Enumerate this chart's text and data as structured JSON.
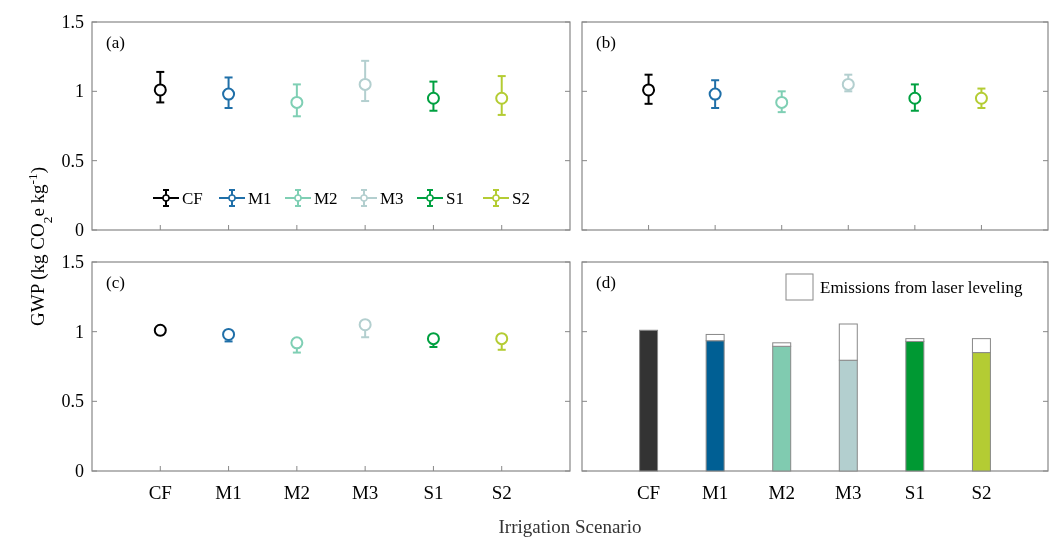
{
  "chart_data": [
    {
      "type": "scatter",
      "title": "(a)",
      "ylabel": "GWP (kg CO$_{2}$e kg$^{-1}$)",
      "categories": [
        "CF",
        "M1",
        "M2",
        "M3",
        "S1",
        "S2"
      ],
      "ylim": [
        0,
        1.5
      ],
      "yticks": [
        0,
        0.5,
        1,
        1.5
      ],
      "tick_labels": "y",
      "marker": "circle",
      "legend": "bottom",
      "grid": false,
      "series": [
        {
          "name": "CF",
          "color": "#000000",
          "x": [
            "CF"
          ],
          "values": [
            1.01
          ],
          "errors": [
            [
              0.92,
              1.14
            ]
          ]
        },
        {
          "name": "M1",
          "color": "#1f6fa8",
          "x": [
            "M1"
          ],
          "values": [
            0.98
          ],
          "errors": [
            [
              0.88,
              1.1
            ]
          ]
        },
        {
          "name": "M2",
          "color": "#7fcfb4",
          "x": [
            "M2"
          ],
          "values": [
            0.92
          ],
          "errors": [
            [
              0.82,
              1.05
            ]
          ]
        },
        {
          "name": "M3",
          "color": "#b3cfcf",
          "x": [
            "M3"
          ],
          "values": [
            1.05
          ],
          "errors": [
            [
              0.93,
              1.22
            ]
          ]
        },
        {
          "name": "S1",
          "color": "#00a040",
          "x": [
            "S1"
          ],
          "values": [
            0.95
          ],
          "errors": [
            [
              0.86,
              1.07
            ]
          ]
        },
        {
          "name": "S2",
          "color": "#b4cc33",
          "x": [
            "S2"
          ],
          "values": [
            0.95
          ],
          "errors": [
            [
              0.83,
              1.11
            ]
          ]
        }
      ]
    },
    {
      "type": "scatter",
      "title": "(b)",
      "categories": [
        "CF",
        "M1",
        "M2",
        "M3",
        "S1",
        "S2"
      ],
      "ylim": [
        0,
        1.5
      ],
      "yticks": [
        0,
        0.5,
        1,
        1.5
      ],
      "tick_labels": false,
      "marker": "circle",
      "grid": false,
      "series": [
        {
          "color": "#000000",
          "x": [
            "CF"
          ],
          "values": [
            1.01
          ],
          "errors": [
            [
              0.91,
              1.12
            ]
          ]
        },
        {
          "color": "#1f6fa8",
          "x": [
            "M1"
          ],
          "values": [
            0.98
          ],
          "errors": [
            [
              0.88,
              1.08
            ]
          ]
        },
        {
          "color": "#7fcfb4",
          "x": [
            "M2"
          ],
          "values": [
            0.92
          ],
          "errors": [
            [
              0.85,
              1.0
            ]
          ]
        },
        {
          "color": "#b3cfcf",
          "x": [
            "M3"
          ],
          "values": [
            1.05
          ],
          "errors": [
            [
              1.0,
              1.12
            ]
          ]
        },
        {
          "color": "#00a040",
          "x": [
            "S1"
          ],
          "values": [
            0.95
          ],
          "errors": [
            [
              0.86,
              1.05
            ]
          ]
        },
        {
          "color": "#b4cc33",
          "x": [
            "S2"
          ],
          "values": [
            0.95
          ],
          "errors": [
            [
              0.88,
              1.02
            ]
          ]
        }
      ]
    },
    {
      "type": "scatter",
      "title": "(c)",
      "xlabel": "Irrigation Scenario",
      "categories": [
        "CF",
        "M1",
        "M2",
        "M3",
        "S1",
        "S2"
      ],
      "ylim": [
        0,
        1.5
      ],
      "yticks": [
        0,
        0.5,
        1,
        1.5
      ],
      "marker": "circle",
      "grid": false,
      "series": [
        {
          "color": "#000000",
          "x": [
            "CF"
          ],
          "values": [
            1.01
          ],
          "errors": [
            [
              0.98,
              1.03
            ]
          ]
        },
        {
          "color": "#1f6fa8",
          "x": [
            "M1"
          ],
          "values": [
            0.98
          ],
          "errors": [
            [
              0.93,
              1.0
            ]
          ]
        },
        {
          "color": "#7fcfb4",
          "x": [
            "M2"
          ],
          "values": [
            0.92
          ],
          "errors": [
            [
              0.85,
              0.94
            ]
          ]
        },
        {
          "color": "#b3cfcf",
          "x": [
            "M3"
          ],
          "values": [
            1.05
          ],
          "errors": [
            [
              0.96,
              1.07
            ]
          ]
        },
        {
          "color": "#00a040",
          "x": [
            "S1"
          ],
          "values": [
            0.95
          ],
          "errors": [
            [
              0.89,
              0.97
            ]
          ]
        },
        {
          "color": "#b4cc33",
          "x": [
            "S2"
          ],
          "values": [
            0.95
          ],
          "errors": [
            [
              0.87,
              0.97
            ]
          ]
        }
      ]
    },
    {
      "type": "bar",
      "title": "(d)",
      "categories": [
        "CF",
        "M1",
        "M2",
        "M3",
        "S1",
        "S2"
      ],
      "ylim": [
        0,
        1.5
      ],
      "yticks": [
        0,
        0.5,
        1,
        1.5
      ],
      "tick_labels": "x",
      "stacked": true,
      "legend": "top right",
      "grid": false,
      "series": [
        {
          "colors": [
            "#333333",
            "#005f94",
            "#80cbb0",
            "#b3cfcf",
            "#009933",
            "#b4cc33"
          ],
          "values": [
            1.01,
            0.935,
            0.895,
            0.795,
            0.93,
            0.85
          ]
        },
        {
          "name": "Emissions from laser leveling",
          "color": "#ffffff",
          "values": [
            0,
            0.045,
            0.025,
            0.26,
            0.02,
            0.1
          ]
        }
      ]
    }
  ]
}
